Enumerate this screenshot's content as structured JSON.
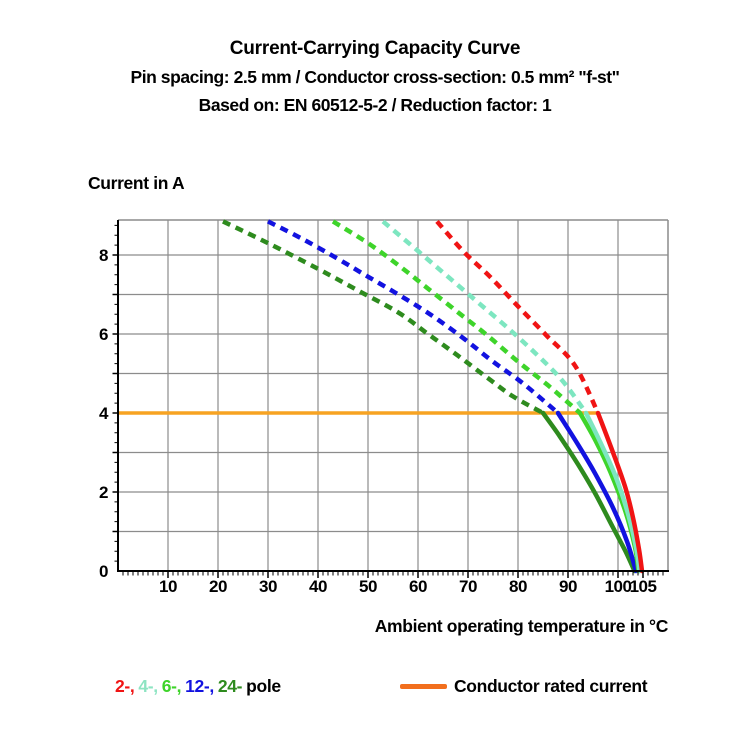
{
  "header": {
    "title": "Current-Carrying Capacity Curve",
    "subtitle": "Pin spacing: 2.5 mm / Conductor cross-section: 0.5 mm² \"f-st\"",
    "based_on": "Based on: EN 60512-5-2 / Reduction factor: 1"
  },
  "legend": {
    "pole_items": [
      {
        "label": "2-,",
        "color": "#f01414"
      },
      {
        "label": "4-,",
        "color": "#8de4c2"
      },
      {
        "label": "6-,",
        "color": "#3ed42a"
      },
      {
        "label": "12-,",
        "color": "#1212e0"
      },
      {
        "label": "24-",
        "color": "#2e8b1e"
      },
      {
        "label": "pole",
        "color": "#000000"
      }
    ],
    "rated": {
      "label": "Conductor rated current",
      "swatch_color": "#f26f1d"
    }
  },
  "chart_data": {
    "type": "line",
    "title": "Current-Carrying Capacity Curve",
    "xlabel": "Ambient operating temperature in °C",
    "ylabel": "Current in A",
    "xlim": [
      0,
      110
    ],
    "ylim": [
      0,
      8.886
    ],
    "x_ticks": [
      10,
      20,
      30,
      40,
      50,
      60,
      70,
      80,
      90,
      100,
      105
    ],
    "y_ticks": [
      0,
      2,
      4,
      6,
      8
    ],
    "x_gridlines": [
      10,
      20,
      30,
      40,
      50,
      60,
      70,
      80,
      90,
      100
    ],
    "y_gridlines": [
      1,
      2,
      3,
      4,
      5,
      6,
      7,
      8
    ],
    "x_minor_tick_step": 1,
    "y_minor_tick_step": 0.25,
    "grid": true,
    "colors": {
      "grid": "#8c8c8c",
      "axis": "#000000"
    },
    "rated_current": {
      "label": "Conductor rated current",
      "value": 4,
      "t_start": 0,
      "t_end": 96,
      "color": "#f7a322",
      "width": 3.5
    },
    "series": [
      {
        "name": "24-pole",
        "color": "#2e8b1e",
        "dashed": [
          [
            21,
            8.85
          ],
          [
            30,
            8.3
          ],
          [
            40,
            7.65
          ],
          [
            48,
            7.1
          ],
          [
            56,
            6.55
          ],
          [
            62,
            6.0
          ],
          [
            68,
            5.45
          ],
          [
            74,
            4.88
          ],
          [
            79,
            4.42
          ],
          [
            85,
            4.0
          ]
        ],
        "solid": [
          [
            85,
            4.0
          ],
          [
            88.4,
            3.4
          ],
          [
            92,
            2.7
          ],
          [
            95.5,
            1.95
          ],
          [
            99,
            1.1
          ],
          [
            101.5,
            0.5
          ],
          [
            103.3,
            0
          ]
        ]
      },
      {
        "name": "12-pole",
        "color": "#1212e0",
        "dashed": [
          [
            30,
            8.85
          ],
          [
            37,
            8.4
          ],
          [
            44,
            7.9
          ],
          [
            50,
            7.45
          ],
          [
            55.4,
            7.05
          ],
          [
            62.4,
            6.5
          ],
          [
            69,
            5.9
          ],
          [
            75,
            5.3
          ],
          [
            81,
            4.75
          ],
          [
            88,
            4.0
          ]
        ],
        "solid": [
          [
            88,
            4.0
          ],
          [
            92,
            3.2
          ],
          [
            95.5,
            2.45
          ],
          [
            99,
            1.6
          ],
          [
            101.8,
            0.75
          ],
          [
            103.6,
            0
          ]
        ]
      },
      {
        "name": "6-pole",
        "color": "#3ed42a",
        "dashed": [
          [
            43,
            8.85
          ],
          [
            50,
            8.3
          ],
          [
            56,
            7.75
          ],
          [
            62,
            7.15
          ],
          [
            68,
            6.55
          ],
          [
            74,
            5.95
          ],
          [
            80,
            5.3
          ],
          [
            86,
            4.7
          ],
          [
            92.4,
            4.0
          ]
        ],
        "solid": [
          [
            92.4,
            4.0
          ],
          [
            95.5,
            3.3
          ],
          [
            98.5,
            2.5
          ],
          [
            101.5,
            1.5
          ],
          [
            103.4,
            0.6
          ],
          [
            104.1,
            0
          ]
        ]
      },
      {
        "name": "4-pole",
        "color": "#7de6c0",
        "dashed": [
          [
            53,
            8.85
          ],
          [
            60,
            8.1
          ],
          [
            66,
            7.45
          ],
          [
            72,
            6.8
          ],
          [
            78,
            6.15
          ],
          [
            84,
            5.45
          ],
          [
            89,
            4.8
          ],
          [
            93.6,
            4.0
          ]
        ],
        "solid": [
          [
            93.6,
            4.0
          ],
          [
            96.5,
            3.25
          ],
          [
            99.5,
            2.4
          ],
          [
            102,
            1.45
          ],
          [
            103.6,
            0.6
          ],
          [
            104.3,
            0
          ]
        ]
      },
      {
        "name": "2-pole",
        "color": "#f01414",
        "dashed": [
          [
            63.8,
            8.85
          ],
          [
            69,
            8.1
          ],
          [
            74.4,
            7.45
          ],
          [
            80,
            6.7
          ],
          [
            85.8,
            5.95
          ],
          [
            91.4,
            5.2
          ],
          [
            96,
            4.0
          ]
        ],
        "solid": [
          [
            96,
            4.0
          ],
          [
            99,
            3.0
          ],
          [
            101.5,
            2.1
          ],
          [
            103,
            1.35
          ],
          [
            104.2,
            0.55
          ],
          [
            104.8,
            0
          ]
        ]
      }
    ]
  }
}
